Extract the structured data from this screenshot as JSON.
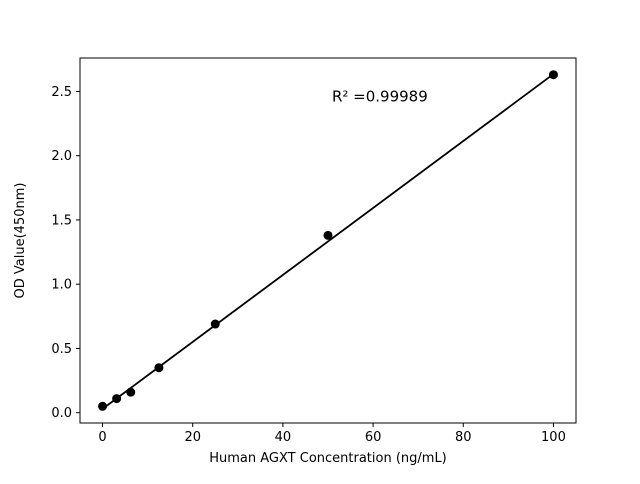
{
  "chart_data": {
    "type": "scatter",
    "title": "",
    "xlabel": "Human AGXT Concentration (ng/mL)",
    "ylabel": "OD Value(450nm)",
    "x": [
      0,
      3.125,
      6.25,
      12.5,
      25,
      50,
      100
    ],
    "y": [
      0.05,
      0.11,
      0.16,
      0.35,
      0.69,
      1.38,
      2.63
    ],
    "fit_line": {
      "x": [
        0,
        100
      ],
      "y": [
        0.03,
        2.635
      ]
    },
    "annotation": {
      "text": "R² =0.99989",
      "x": 61.5,
      "y": 2.42
    },
    "xlim": [
      -5,
      105
    ],
    "ylim": [
      -0.08,
      2.76
    ],
    "xticks": [
      0,
      20,
      40,
      60,
      80,
      100
    ],
    "xtick_labels": [
      "0",
      "20",
      "40",
      "60",
      "80",
      "100"
    ],
    "yticks": [
      0.0,
      0.5,
      1.0,
      1.5,
      2.0,
      2.5
    ],
    "ytick_labels": [
      "0.0",
      "0.5",
      "1.0",
      "1.5",
      "2.0",
      "2.5"
    ],
    "grid": false,
    "legend": null,
    "marker_color": "#000000",
    "line_color": "#000000",
    "axis_color": "#000000",
    "background": "#ffffff"
  }
}
